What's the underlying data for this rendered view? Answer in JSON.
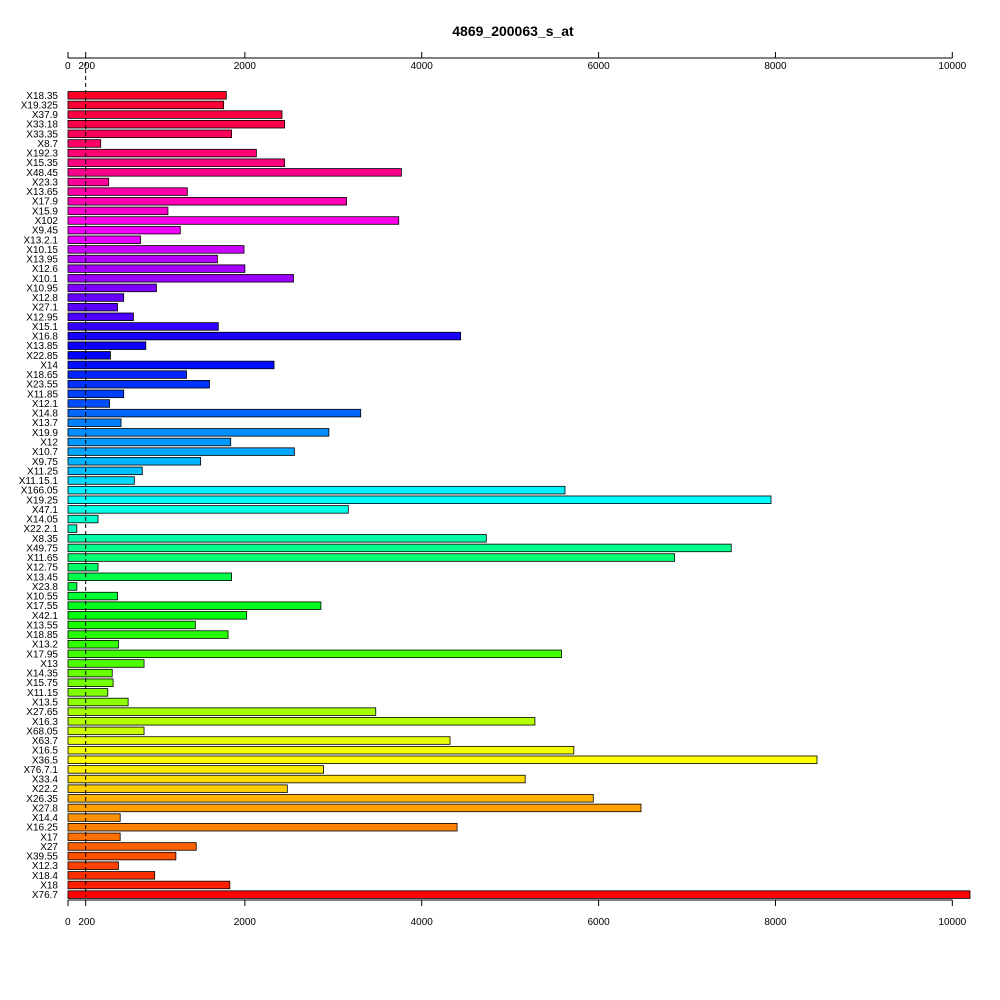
{
  "chart_data": {
    "type": "bar",
    "orientation": "horizontal",
    "title": "4869_200063_s_at",
    "xlabel": "",
    "ylabel": "",
    "xlim": [
      0,
      10200
    ],
    "x_ticks": [
      0,
      200,
      2000,
      4000,
      6000,
      8000,
      10000
    ],
    "x_tick_labels": [
      "0",
      "200",
      "2000",
      "4000",
      "6000",
      "8000",
      "10000"
    ],
    "reference_line": 200,
    "grid": false,
    "legend": "none",
    "categories": [
      "X18.35",
      "X19.325",
      "X37.9",
      "X33.18",
      "X33.35",
      "X8.7",
      "X192.3",
      "X15.35",
      "X48.45",
      "X23.3",
      "X13.65",
      "X17.9",
      "X15.9",
      "X102",
      "X9.45",
      "X13.2.1",
      "X10.15",
      "X13.95",
      "X12.6",
      "X10.1",
      "X10.95",
      "X12.8",
      "X27.1",
      "X12.95",
      "X15.1",
      "X16.8",
      "X13.85",
      "X22.85",
      "X14",
      "X18.65",
      "X23.55",
      "X11.85",
      "X12.1",
      "X14.8",
      "X13.7",
      "X19.9",
      "X12",
      "X10.7",
      "X9.75",
      "X11.25",
      "X11.15.1",
      "X166.05",
      "X19.25",
      "X47.1",
      "X14.05",
      "X22.2.1",
      "X8.35",
      "X49.75",
      "X11.65",
      "X12.75",
      "X13.45",
      "X23.8",
      "X10.55",
      "X17.55",
      "X42.1",
      "X13.55",
      "X18.85",
      "X13.2",
      "X17.95",
      "X13",
      "X14.35",
      "X15.75",
      "X11.15",
      "X13.5",
      "X27.65",
      "X16.3",
      "X68.05",
      "X63.7",
      "X16.5",
      "X36.5",
      "X76.7.1",
      "X33.4",
      "X22.2",
      "X26.35",
      "X27.8",
      "X14.4",
      "X16.25",
      "X17",
      "X27",
      "X39.55",
      "X12.3",
      "X18.4",
      "X18",
      "X76.7"
    ],
    "values": [
      1790,
      1760,
      2420,
      2450,
      1850,
      370,
      2130,
      2450,
      3770,
      460,
      1350,
      3150,
      1130,
      3740,
      1270,
      820,
      1990,
      1690,
      2000,
      2550,
      1000,
      630,
      560,
      740,
      1700,
      4440,
      880,
      480,
      2330,
      1340,
      1600,
      630,
      470,
      3310,
      600,
      2950,
      1840,
      2560,
      1500,
      840,
      750,
      5620,
      7950,
      3170,
      340,
      100,
      4730,
      7500,
      6860,
      340,
      1850,
      100,
      560,
      2860,
      2020,
      1440,
      1810,
      570,
      5580,
      860,
      500,
      510,
      450,
      680,
      3480,
      5280,
      860,
      4320,
      5720,
      8470,
      2890,
      5170,
      2480,
      5940,
      6480,
      590,
      4400,
      590,
      1450,
      1220,
      570,
      980,
      1830,
      10200
    ],
    "colors": [
      "#FF0026",
      "#FF0033",
      "#FF0040",
      "#FF004D",
      "#FF005A",
      "#FF0066",
      "#FF0073",
      "#FF0080",
      "#FF008D",
      "#FF009A",
      "#FF00A6",
      "#FF00B3",
      "#FF00CC",
      "#FF00E6",
      "#F200FF",
      "#E600FF",
      "#CC00FF",
      "#B300FF",
      "#A600FF",
      "#9900FF",
      "#8000FF",
      "#6600FF",
      "#5A00FF",
      "#4D00FF",
      "#3300FF",
      "#1A00FF",
      "#0D00FF",
      "#0000FF",
      "#000DFF",
      "#0026FF",
      "#0033FF",
      "#0040FF",
      "#004DFF",
      "#0066FF",
      "#0080FF",
      "#008DFF",
      "#009AFF",
      "#00A6FF",
      "#00B3FF",
      "#00C0FF",
      "#00D9FF",
      "#00F2FF",
      "#00FFFF",
      "#00FFE6",
      "#00FFCC",
      "#00FFBF",
      "#00FFA6",
      "#00FF8D",
      "#00FF73",
      "#00FF66",
      "#00FF4D",
      "#00FF40",
      "#00FF33",
      "#00FF1A",
      "#00FF0D",
      "#1AFF00",
      "#26FF00",
      "#33FF00",
      "#40FF00",
      "#4DFF00",
      "#66FF00",
      "#73FF00",
      "#80FF00",
      "#8DFF00",
      "#A6FF00",
      "#B3FF00",
      "#CCFF00",
      "#E6FF00",
      "#F2FF00",
      "#FFFF00",
      "#FFEE00",
      "#FFDD00",
      "#FFCC00",
      "#FFB300",
      "#FF9F00",
      "#FF9000",
      "#FF8000",
      "#FF7000",
      "#FF6000",
      "#FF5000",
      "#FF4000",
      "#FF3000",
      "#FF2000",
      "#FF0000"
    ]
  }
}
